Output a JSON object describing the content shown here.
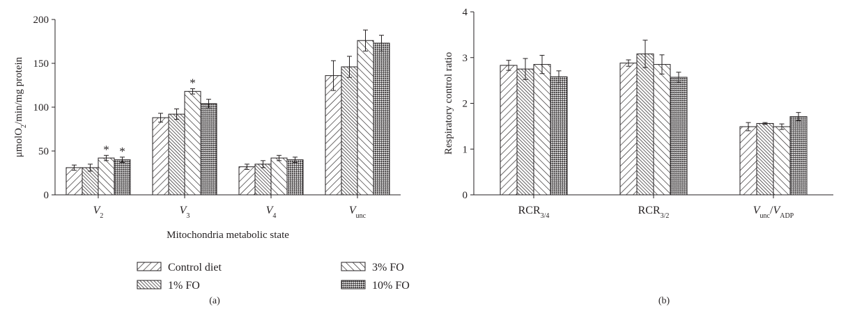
{
  "legend": [
    {
      "label": "Control diet",
      "pattern": "hatch-fwd"
    },
    {
      "label": "3% FO",
      "pattern": "hatch-back"
    },
    {
      "label": "1% FO",
      "pattern": "hatch-dense"
    },
    {
      "label": "10% FO",
      "pattern": "checker"
    }
  ],
  "colors": {
    "ink": "#231f20",
    "background": "#ffffff"
  },
  "chart_data": [
    {
      "type": "bar",
      "panel_label": "(a)",
      "xlabel": "Mitochondria metabolic state",
      "ylabel": "μmolO2/min/mg protein",
      "ylabel_parts": [
        {
          "text": "μmolO",
          "sub": false
        },
        {
          "text": "2",
          "sub": true
        },
        {
          "text": "/min/mg protein",
          "sub": false
        }
      ],
      "ylim": [
        0,
        200
      ],
      "yticks": [
        "0",
        "50",
        "100",
        "150",
        "200"
      ],
      "categories": [
        "V2",
        "V3",
        "V4",
        "Vunc"
      ],
      "category_parts": [
        [
          {
            "text": "V",
            "italic": true
          },
          {
            "text": "2",
            "sub": true
          }
        ],
        [
          {
            "text": "V",
            "italic": true
          },
          {
            "text": "3",
            "sub": true
          }
        ],
        [
          {
            "text": "V",
            "italic": true
          },
          {
            "text": "4",
            "sub": true
          }
        ],
        [
          {
            "text": "V",
            "italic": true
          },
          {
            "text": "unc",
            "sub": true
          }
        ]
      ],
      "series": [
        {
          "name": "Control diet",
          "values": [
            31,
            88,
            32,
            136
          ],
          "errors": [
            3,
            5,
            3,
            17
          ]
        },
        {
          "name": "1% FO",
          "values": [
            31,
            92,
            35,
            146
          ],
          "errors": [
            4,
            6,
            4,
            12
          ]
        },
        {
          "name": "3% FO",
          "values": [
            42,
            118,
            42,
            176
          ],
          "errors": [
            3,
            3,
            3,
            12
          ]
        },
        {
          "name": "10% FO",
          "values": [
            40,
            104,
            40,
            173
          ],
          "errors": [
            3,
            5,
            3,
            9
          ]
        }
      ],
      "annotations": [
        {
          "category": 0,
          "series": 2,
          "text": "*"
        },
        {
          "category": 0,
          "series": 3,
          "text": "*"
        },
        {
          "category": 1,
          "series": 2,
          "text": "*"
        }
      ]
    },
    {
      "type": "bar",
      "panel_label": "(b)",
      "xlabel": "",
      "ylabel": "Respiratory control ratio",
      "ylim": [
        0,
        4
      ],
      "yticks": [
        "0",
        "1",
        "2",
        "3",
        "4"
      ],
      "categories": [
        "RCR3/4",
        "RCR3/2",
        "Vunc/VADP"
      ],
      "category_parts": [
        [
          {
            "text": "RCR"
          },
          {
            "text": "3/4",
            "sub": true
          }
        ],
        [
          {
            "text": "RCR"
          },
          {
            "text": "3/2",
            "sub": true
          }
        ],
        [
          {
            "text": "V",
            "italic": true
          },
          {
            "text": "unc",
            "sub": true
          },
          {
            "text": "/"
          },
          {
            "text": "V",
            "italic": true
          },
          {
            "text": "ADP",
            "sub": true
          }
        ]
      ],
      "series": [
        {
          "name": "Control diet",
          "values": [
            2.83,
            2.88,
            1.49
          ],
          "errors": [
            0.11,
            0.07,
            0.09
          ]
        },
        {
          "name": "1% FO",
          "values": [
            2.75,
            3.08,
            1.56
          ],
          "errors": [
            0.23,
            0.3,
            0.02
          ]
        },
        {
          "name": "3% FO",
          "values": [
            2.85,
            2.85,
            1.49
          ],
          "errors": [
            0.2,
            0.21,
            0.06
          ]
        },
        {
          "name": "10% FO",
          "values": [
            2.58,
            2.57,
            1.71
          ],
          "errors": [
            0.13,
            0.11,
            0.09
          ]
        }
      ],
      "annotations": []
    }
  ]
}
